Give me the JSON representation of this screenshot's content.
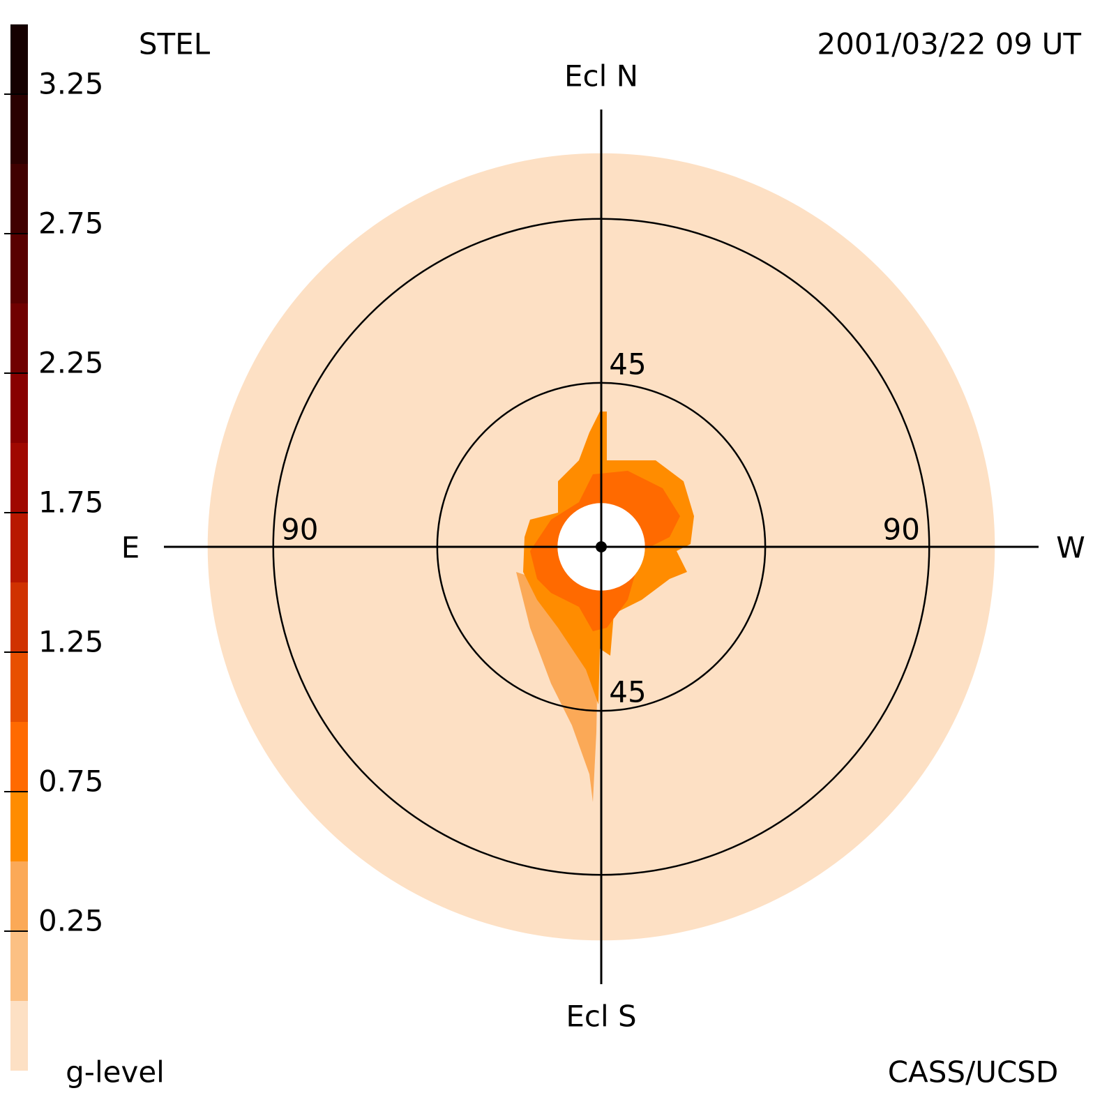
{
  "chart_data": {
    "type": "skymap",
    "title": "STEL",
    "subtitle": "2001/03/22 09 UT",
    "credit": "CASS/UCSD",
    "north_label": "Ecl N",
    "south_label": "Ecl S",
    "east_label": "E",
    "west_label": "W",
    "rlim": [
      0,
      120
    ],
    "rings": [
      45,
      90
    ],
    "field_range": [
      12,
      108
    ],
    "field_color": "#fde0c4",
    "colorbar": {
      "label": "g-level",
      "ylim": [
        -0.25,
        3.5
      ],
      "bins": [
        -0.25,
        0,
        0.25,
        0.5,
        0.75,
        1,
        1.25,
        1.5,
        1.75,
        2,
        2.25,
        2.5,
        2.75,
        3,
        3.25,
        3.5
      ],
      "colors": [
        "#fde0c4",
        "#fcc083",
        "#fba957",
        "#ff8c00",
        "#ff6a00",
        "#e85000",
        "#d03200",
        "#b81800",
        "#a00800",
        "#880000",
        "#700000",
        "#580000",
        "#400000",
        "#2a0000",
        "#150000"
      ],
      "yticks": [
        0.25,
        0.75,
        1.25,
        1.75,
        2.25,
        2.75,
        3.25
      ]
    }
  }
}
